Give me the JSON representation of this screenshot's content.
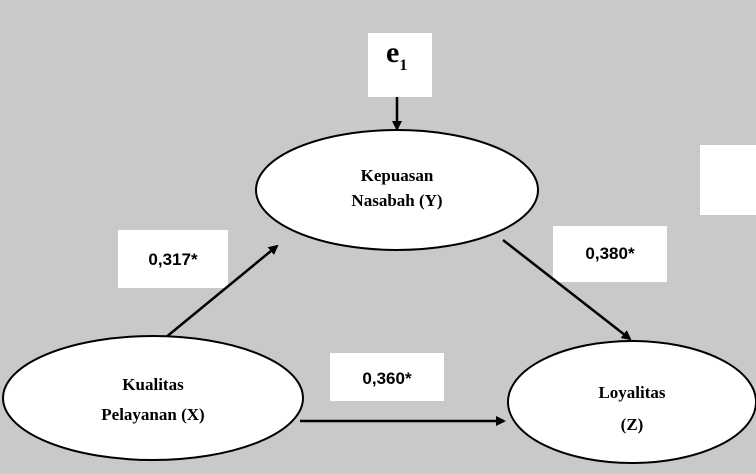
{
  "error_term": {
    "label": "e",
    "subscript": "1"
  },
  "nodes": [
    {
      "lines": [
        "Kepuasan",
        "Nasabah (Y)"
      ]
    },
    {
      "lines": [
        "Kualitas",
        "Pelayanan (X)"
      ]
    },
    {
      "lines": [
        "Loyalitas",
        "(Z)"
      ]
    }
  ],
  "edges": [
    {
      "label": "0,317*"
    },
    {
      "label": "0,380*"
    },
    {
      "label": "0,360*"
    }
  ]
}
